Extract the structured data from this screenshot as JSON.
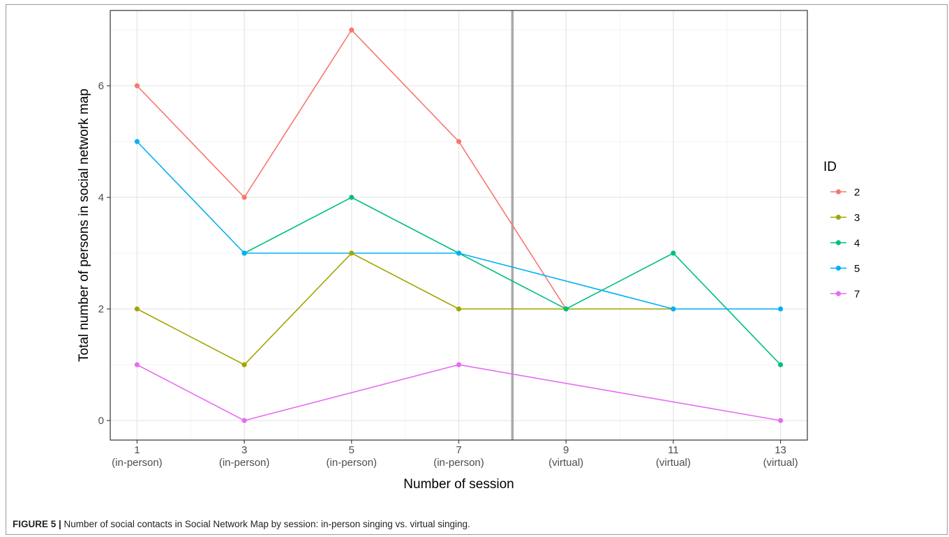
{
  "chart_data": {
    "type": "line",
    "xlabel": "Number of session",
    "ylabel": "Total number of persons in social network map",
    "x": [
      1,
      3,
      5,
      7,
      9,
      11,
      13
    ],
    "x_tick_labels": [
      [
        "1",
        "(in-person)"
      ],
      [
        "3",
        "(in-person)"
      ],
      [
        "5",
        "(in-person)"
      ],
      [
        "7",
        "(in-person)"
      ],
      [
        "9",
        "(virtual)"
      ],
      [
        "11",
        "(virtual)"
      ],
      [
        "13",
        "(virtual)"
      ]
    ],
    "y_ticks": [
      "0",
      "2",
      "4",
      "6"
    ],
    "xlim": [
      0.5,
      13.5
    ],
    "ylim": [
      -0.35,
      7.35
    ],
    "vline_x": 8,
    "grid": true,
    "legend_title": "ID",
    "legend_position": "right",
    "series": [
      {
        "name": "2",
        "color": "#F8766D",
        "points": [
          [
            1,
            6
          ],
          [
            3,
            4
          ],
          [
            5,
            7
          ],
          [
            7,
            5
          ],
          [
            9,
            2
          ]
        ]
      },
      {
        "name": "3",
        "color": "#A3A500",
        "points": [
          [
            1,
            2
          ],
          [
            3,
            1
          ],
          [
            5,
            3
          ],
          [
            7,
            2
          ],
          [
            9,
            2
          ],
          [
            11,
            2
          ]
        ]
      },
      {
        "name": "4",
        "color": "#00BF7D",
        "points": [
          [
            3,
            3
          ],
          [
            5,
            4
          ],
          [
            7,
            3
          ],
          [
            9,
            2
          ],
          [
            11,
            3
          ],
          [
            13,
            1
          ]
        ]
      },
      {
        "name": "5",
        "color": "#00B0F6",
        "points": [
          [
            1,
            5
          ],
          [
            3,
            3
          ],
          [
            7,
            3
          ],
          [
            11,
            2
          ],
          [
            13,
            2
          ]
        ]
      },
      {
        "name": "7",
        "color": "#E76BF3",
        "points": [
          [
            1,
            1
          ],
          [
            3,
            0
          ],
          [
            7,
            1
          ],
          [
            13,
            0
          ]
        ]
      }
    ]
  },
  "caption": {
    "label": "FIGURE 5 |",
    "text": " Number of social contacts in Social Network Map by session: in-person singing vs. virtual singing."
  }
}
